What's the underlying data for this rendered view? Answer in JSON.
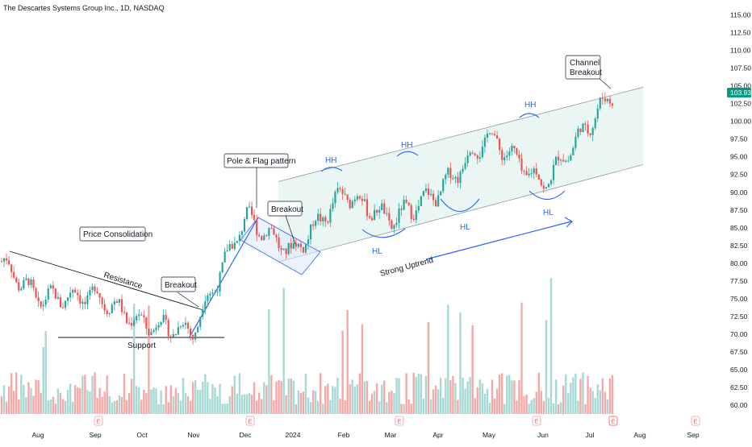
{
  "header": {
    "title": "The Descartes Systems Group Inc., 1D, NASDAQ"
  },
  "colors": {
    "up": "#26a69a",
    "down": "#ef5350",
    "volume_up": "#a7d9d4",
    "volume_down": "#f4a9a8",
    "channel_fill": "#eaf6f4",
    "accent": "#2962ff",
    "price_label_bg": "#089981"
  },
  "chart_data": {
    "type": "candlestick",
    "y_axis": {
      "range": [
        59,
        115.5
      ],
      "ticks": [
        "115.00",
        "112.50",
        "110.00",
        "107.50",
        "105.00",
        "102.50",
        "100.00",
        "97.50",
        "95.00",
        "92.50",
        "90.00",
        "87.50",
        "85.00",
        "82.50",
        "80.00",
        "77.50",
        "75.00",
        "72.50",
        "70.00",
        "67.50",
        "65.00",
        "62.50",
        "60.00"
      ]
    },
    "x_axis": {
      "ticks": [
        "Aug",
        "Sep",
        "Oct",
        "Nov",
        "Dec",
        "2024",
        "Feb",
        "Mar",
        "Apr",
        "May",
        "Jun",
        "Jul",
        "Aug",
        "Sep"
      ]
    },
    "last_price": "103.93",
    "approx_close_path": [
      {
        "t": "Jul 2023",
        "close": 80.5
      },
      {
        "t": "Aug 2023",
        "close": 75.0
      },
      {
        "t": "Sep 2023",
        "close": 75.5
      },
      {
        "t": "Oct 2023",
        "close": 71.5
      },
      {
        "t": "Nov 2023",
        "close": 70.5
      },
      {
        "t": "Dec 2023",
        "close": 86.5
      },
      {
        "t": "2024",
        "close": 81.5
      },
      {
        "t": "Feb 2024",
        "close": 90.0
      },
      {
        "t": "Mar 2024",
        "close": 86.0
      },
      {
        "t": "Apr 2024",
        "close": 90.0
      },
      {
        "t": "May 2024",
        "close": 98.0
      },
      {
        "t": "Jun 2024",
        "close": 91.0
      },
      {
        "t": "Jul 2024",
        "close": 103.9
      }
    ],
    "annotations": [
      {
        "text": "Price Consolidation"
      },
      {
        "text": "Resistance"
      },
      {
        "text": "Support"
      },
      {
        "text": "Breakout"
      },
      {
        "text": "Pole & Flag pattern"
      },
      {
        "text": "Breakout"
      },
      {
        "text": "HH"
      },
      {
        "text": "HH"
      },
      {
        "text": "HH"
      },
      {
        "text": "HL"
      },
      {
        "text": "HL"
      },
      {
        "text": "HL"
      },
      {
        "text": "Strong Uptrend"
      },
      {
        "text": "Channel"
      },
      {
        "text": "Breakout"
      }
    ],
    "event_markers": [
      "E",
      "E",
      "E",
      "E",
      "E",
      "E"
    ]
  }
}
